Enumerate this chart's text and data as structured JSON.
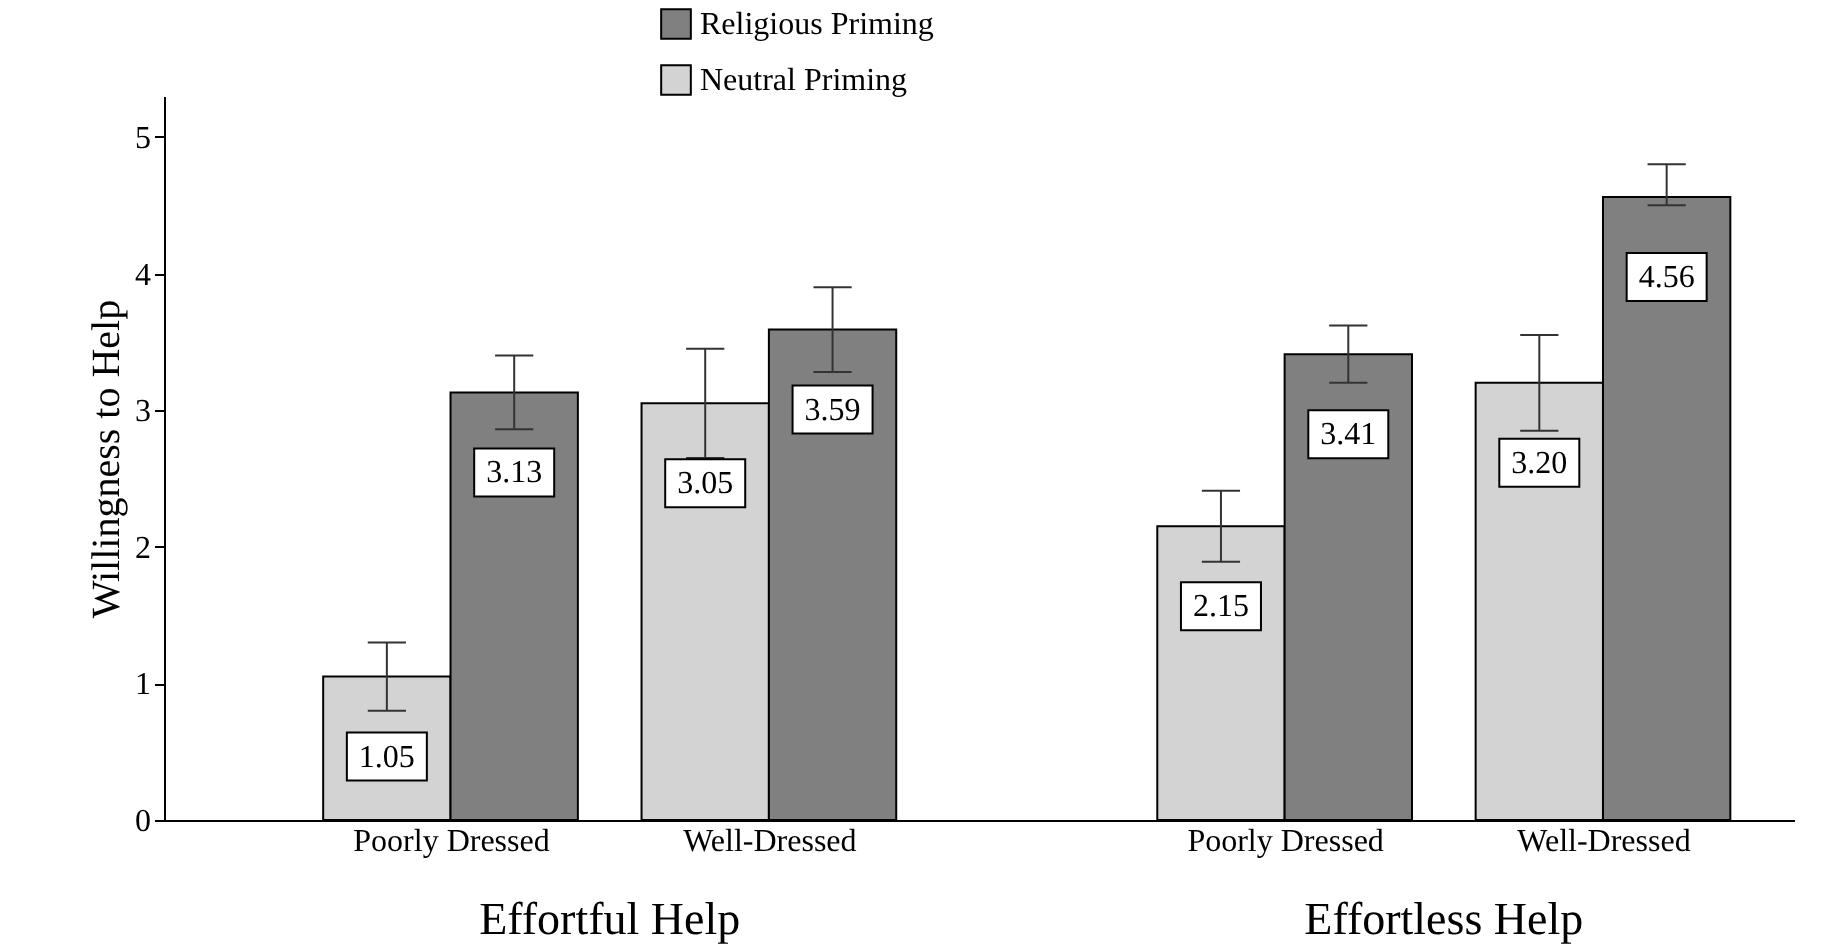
{
  "chart_data": {
    "type": "bar",
    "categories": [
      "Poorly Dressed",
      "Well-Dressed",
      "Poorly Dressed",
      "Well-Dressed"
    ],
    "ylabel": "Willingness to Help",
    "annotations": [
      "Effortful Help",
      "Effortless Help"
    ],
    "series": [
      {
        "name": "Neutral Priming",
        "color": "#d3d3d3",
        "values": [
          1.05,
          3.05,
          2.15,
          3.2
        ],
        "value_labels": [
          "1.05",
          "3.05",
          "2.15",
          "3.20"
        ],
        "errors": [
          0.25,
          0.4,
          0.26,
          0.35
        ]
      },
      {
        "name": "Religious Priming",
        "color": "#808080",
        "values": [
          3.13,
          3.59,
          3.41,
          4.56
        ],
        "value_labels": [
          "3.13",
          "3.59",
          "3.41",
          "4.56"
        ],
        "errors": [
          0.27,
          0.31,
          0.21,
          [
            4.5,
            4.8
          ]
        ]
      }
    ],
    "ylim": [
      0,
      5.3
    ],
    "yticks": [
      0,
      1,
      2,
      3,
      4,
      5
    ],
    "legend": "top",
    "grid": false
  }
}
